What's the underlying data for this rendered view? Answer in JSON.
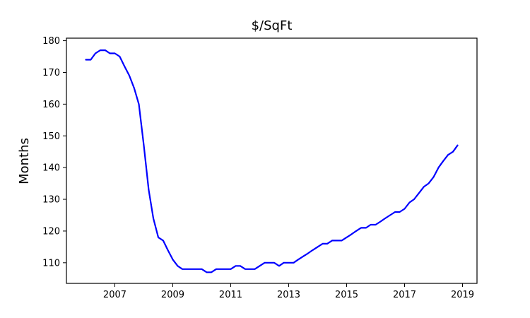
{
  "chart_data": {
    "type": "line",
    "title": "$/SqFt",
    "xlabel": "",
    "ylabel": "Months",
    "xlim": [
      2005.33,
      2019.5
    ],
    "ylim": [
      103.5,
      180.8
    ],
    "xticks": [
      2007,
      2009,
      2011,
      2013,
      2015,
      2017,
      2019
    ],
    "xtick_labels": [
      "2007",
      "2009",
      "2011",
      "2013",
      "2015",
      "2017",
      "2019"
    ],
    "yticks": [
      110,
      120,
      130,
      140,
      150,
      160,
      170,
      180
    ],
    "ytick_labels": [
      "110",
      "120",
      "130",
      "140",
      "150",
      "160",
      "170",
      "180"
    ],
    "grid": false,
    "series": [
      {
        "color": "#0000ff",
        "x": [
          2006.0,
          2006.17,
          2006.33,
          2006.5,
          2006.67,
          2006.83,
          2007.0,
          2007.17,
          2007.33,
          2007.5,
          2007.67,
          2007.83,
          2008.0,
          2008.17,
          2008.33,
          2008.5,
          2008.67,
          2008.83,
          2009.0,
          2009.17,
          2009.33,
          2009.5,
          2009.67,
          2009.83,
          2010.0,
          2010.17,
          2010.33,
          2010.5,
          2010.67,
          2010.83,
          2011.0,
          2011.17,
          2011.33,
          2011.5,
          2011.67,
          2011.83,
          2012.0,
          2012.17,
          2012.33,
          2012.5,
          2012.67,
          2012.83,
          2013.0,
          2013.17,
          2013.33,
          2013.5,
          2013.67,
          2013.83,
          2014.0,
          2014.17,
          2014.33,
          2014.5,
          2014.67,
          2014.83,
          2015.0,
          2015.17,
          2015.33,
          2015.5,
          2015.67,
          2015.83,
          2016.0,
          2016.17,
          2016.33,
          2016.5,
          2016.67,
          2016.83,
          2017.0,
          2017.17,
          2017.33,
          2017.5,
          2017.67,
          2017.83,
          2018.0,
          2018.17,
          2018.33,
          2018.5,
          2018.67,
          2018.83
        ],
        "y": [
          174,
          174,
          176,
          177,
          177,
          176,
          176,
          175,
          172,
          169,
          165,
          160,
          147,
          133,
          124,
          118,
          117,
          114,
          111,
          109,
          108,
          108,
          108,
          108,
          108,
          107,
          107,
          108,
          108,
          108,
          108,
          109,
          109,
          108,
          108,
          108,
          109,
          110,
          110,
          110,
          109,
          110,
          110,
          110,
          111,
          112,
          113,
          114,
          115,
          116,
          116,
          117,
          117,
          117,
          118,
          119,
          120,
          121,
          121,
          122,
          122,
          123,
          124,
          125,
          126,
          126,
          127,
          129,
          130,
          132,
          134,
          135,
          137,
          140,
          142,
          144,
          145,
          147
        ]
      }
    ]
  }
}
